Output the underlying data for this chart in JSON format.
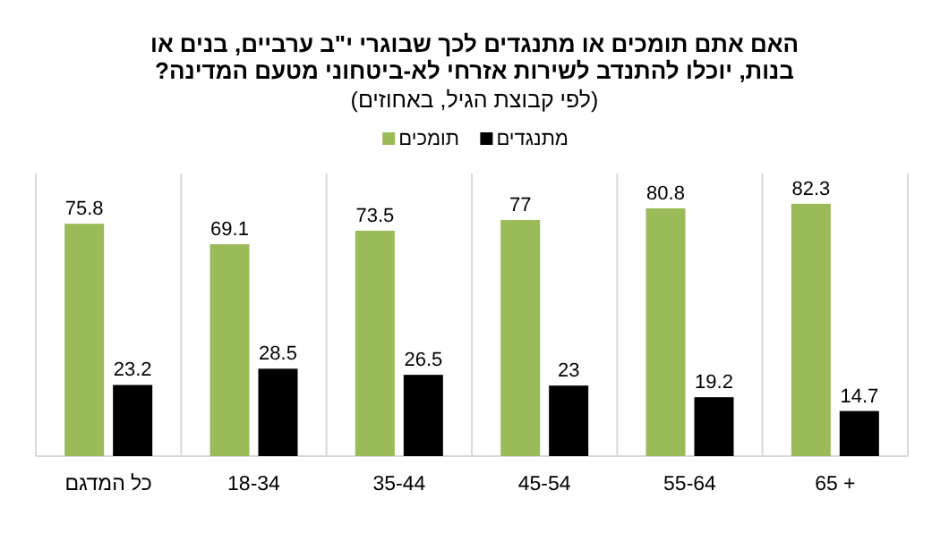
{
  "chart_data": {
    "type": "bar",
    "title": "האם אתם תומכים או מתנגדים לכך שבוגרי י\"ב ערביים, בנים או בנות, יוכלו להתנדב לשירות אזרחי לא-ביטחוני מטעם המדינה?",
    "subtitle": "(לפי קבוצת הגיל, באחוזים)",
    "categories": [
      "כל המדגם",
      "18-34",
      "35-44",
      "45-54",
      "55-64",
      "65 +"
    ],
    "series": [
      {
        "name": "תומכים",
        "color": "#9bbb59",
        "values": [
          75.8,
          69.1,
          73.5,
          77,
          80.8,
          82.3
        ]
      },
      {
        "name": "מתנגדים",
        "color": "#000000",
        "values": [
          23.2,
          28.5,
          26.5,
          23,
          19.2,
          14.7
        ]
      }
    ],
    "data_labels": true,
    "legend": "top",
    "grid": "x"
  }
}
